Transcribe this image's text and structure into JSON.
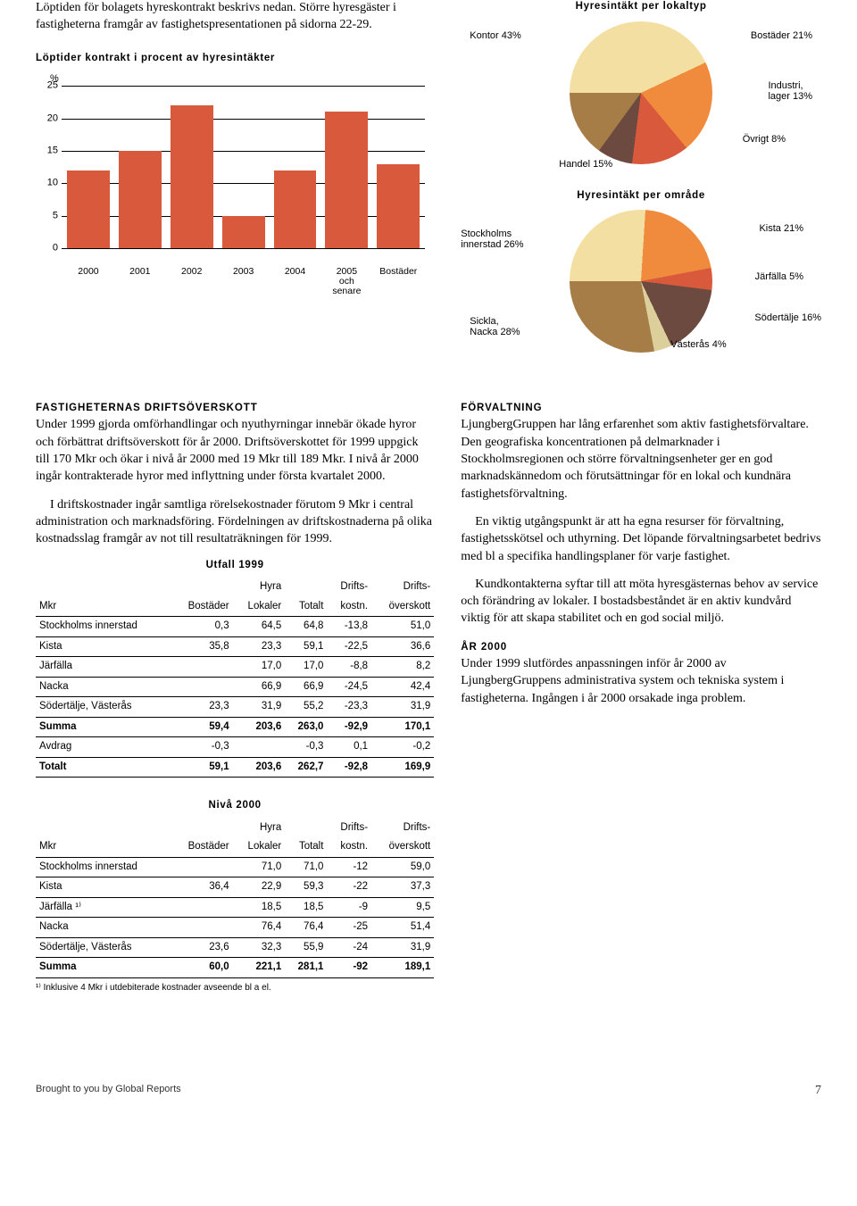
{
  "intro": "Löptiden för bolagets hyreskontrakt beskrivs nedan. Större hyresgäster i fastigheterna framgår av fastighetspresentationen på sidorna 22-29.",
  "bar_chart": {
    "title": "Löptider kontrakt i procent av hyresintäkter",
    "y_unit": "%",
    "ylim": [
      0,
      25
    ],
    "ytick_step": 5,
    "categories": [
      "2000",
      "2001",
      "2002",
      "2003",
      "2004",
      "2005\noch\nsenare",
      "Bostäder"
    ],
    "values": [
      12,
      15,
      22,
      5,
      12,
      21,
      13
    ],
    "bar_color": "#d8593b",
    "grid_color": "#000000"
  },
  "pie1": {
    "title": "Hyresintäkt per lokaltyp",
    "slices": [
      {
        "label": "Kontor 43%",
        "value": 43,
        "color": "#f4dfa3"
      },
      {
        "label": "Bostäder 21%",
        "value": 21,
        "color": "#f08b3e"
      },
      {
        "label": "Industri,\nlager 13%",
        "value": 13,
        "color": "#d8593b"
      },
      {
        "label": "Övrigt 8%",
        "value": 8,
        "color": "#6d4a3f"
      },
      {
        "label": "Handel 15%",
        "value": 15,
        "color": "#a67d46"
      }
    ]
  },
  "pie2": {
    "title": "Hyresintäkt per område",
    "slices": [
      {
        "label": "Stockholms\ninnerstad 26%",
        "value": 26,
        "color": "#f4dfa3"
      },
      {
        "label": "Kista 21%",
        "value": 21,
        "color": "#f08b3e"
      },
      {
        "label": "Järfälla 5%",
        "value": 5,
        "color": "#d8593b"
      },
      {
        "label": "Södertälje 16%",
        "value": 16,
        "color": "#6d4a3f"
      },
      {
        "label": "Västerås 4%",
        "value": 4,
        "color": "#dccf9c"
      },
      {
        "label": "Sickla,\nNacka 28%",
        "value": 28,
        "color": "#a67d46"
      }
    ]
  },
  "sections": {
    "drifts_head": "FASTIGHETERNAS DRIFTSÖVERSKOTT",
    "drifts_p1a": "Under 1999 gjorda omförhandlingar och nyuthyrningar innebär ökade hyror och förbättrat driftsöverskott för år 2000. Driftsöverskottet för 1999 uppgick till 170 Mkr och ökar i nivå år 2000 med 19 Mkr till 189 Mkr. I nivå år 2000 ingår kontrakterade hyror med inflyttning under första kvartalet 2000.",
    "drifts_p1b": "I driftskostnader ingår samtliga rörelsekostnader förutom 9 Mkr i central administration och marknadsföring. Fördelningen av driftskostnaderna på olika kostnadsslag framgår av not till resultaträkningen för 1999.",
    "forvalt_head": "FÖRVALTNING",
    "forvalt_p1": "LjungbergGruppen har lång erfarenhet som aktiv fastighetsförvaltare. Den geografiska koncentrationen på delmarknader i Stockholmsregionen och större förvaltningsenheter ger en god marknadskännedom och förutsättningar för en lokal och kundnära fastighetsförvaltning.",
    "forvalt_p2": "En viktig utgångspunkt är att ha egna resurser för förvaltning, fastighetsskötsel och uthyrning. Det löpande förvaltningsarbetet bedrivs med bl a specifika handlingsplaner för varje fastighet.",
    "forvalt_p3": "Kundkontakterna syftar till att möta hyresgästernas behov av service och förändring av lokaler. I bostadsbeståndet är en aktiv kundvård viktig för att skapa stabilitet och en god social miljö.",
    "ar2000_head": "ÅR 2000",
    "ar2000_p": "Under 1999 slutfördes anpassningen inför år 2000 av LjungbergGruppens administrativa system och tekniska system i fastigheterna. Ingången i år 2000 orsakade inga problem."
  },
  "table1": {
    "caption": "Utfall 1999",
    "columns": [
      "Mkr",
      "Bostäder",
      "Hyra\nLokaler",
      "Totalt",
      "Drifts-\nkostn.",
      "Drifts-\növerskott"
    ],
    "rows": [
      [
        "Stockholms innerstad",
        "0,3",
        "64,5",
        "64,8",
        "-13,8",
        "51,0"
      ],
      [
        "Kista",
        "35,8",
        "23,3",
        "59,1",
        "-22,5",
        "36,6"
      ],
      [
        "Järfälla",
        "",
        "17,0",
        "17,0",
        "-8,8",
        "8,2"
      ],
      [
        "Nacka",
        "",
        "66,9",
        "66,9",
        "-24,5",
        "42,4"
      ],
      [
        "Södertälje, Västerås",
        "23,3",
        "31,9",
        "55,2",
        "-23,3",
        "31,9"
      ]
    ],
    "sum_row": [
      "Summa",
      "59,4",
      "203,6",
      "263,0",
      "-92,9",
      "170,1"
    ],
    "extra_rows": [
      [
        "Avdrag",
        "-0,3",
        "",
        "-0,3",
        "0,1",
        "-0,2"
      ]
    ],
    "total_row": [
      "Totalt",
      "59,1",
      "203,6",
      "262,7",
      "-92,8",
      "169,9"
    ]
  },
  "table2": {
    "caption": "Nivå 2000",
    "columns": [
      "Mkr",
      "Bostäder",
      "Hyra\nLokaler",
      "Totalt",
      "Drifts-\nkostn.",
      "Drifts-\növerskott"
    ],
    "rows": [
      [
        "Stockholms innerstad",
        "",
        "71,0",
        "71,0",
        "-12",
        "59,0"
      ],
      [
        "Kista",
        "36,4",
        "22,9",
        "59,3",
        "-22",
        "37,3"
      ],
      [
        "Järfälla ¹⁾",
        "",
        "18,5",
        "18,5",
        "-9",
        "9,5"
      ],
      [
        "Nacka",
        "",
        "76,4",
        "76,4",
        "-25",
        "51,4"
      ],
      [
        "Södertälje, Västerås",
        "23,6",
        "32,3",
        "55,9",
        "-24",
        "31,9"
      ]
    ],
    "sum_row": [
      "Summa",
      "60,0",
      "221,1",
      "281,1",
      "-92",
      "189,1"
    ],
    "footnote": "¹⁾ Inklusive 4 Mkr i utdebiterade kostnader avseende bl a el."
  },
  "footer": {
    "brought": "Brought to you by Global Reports",
    "page_num": "7"
  }
}
